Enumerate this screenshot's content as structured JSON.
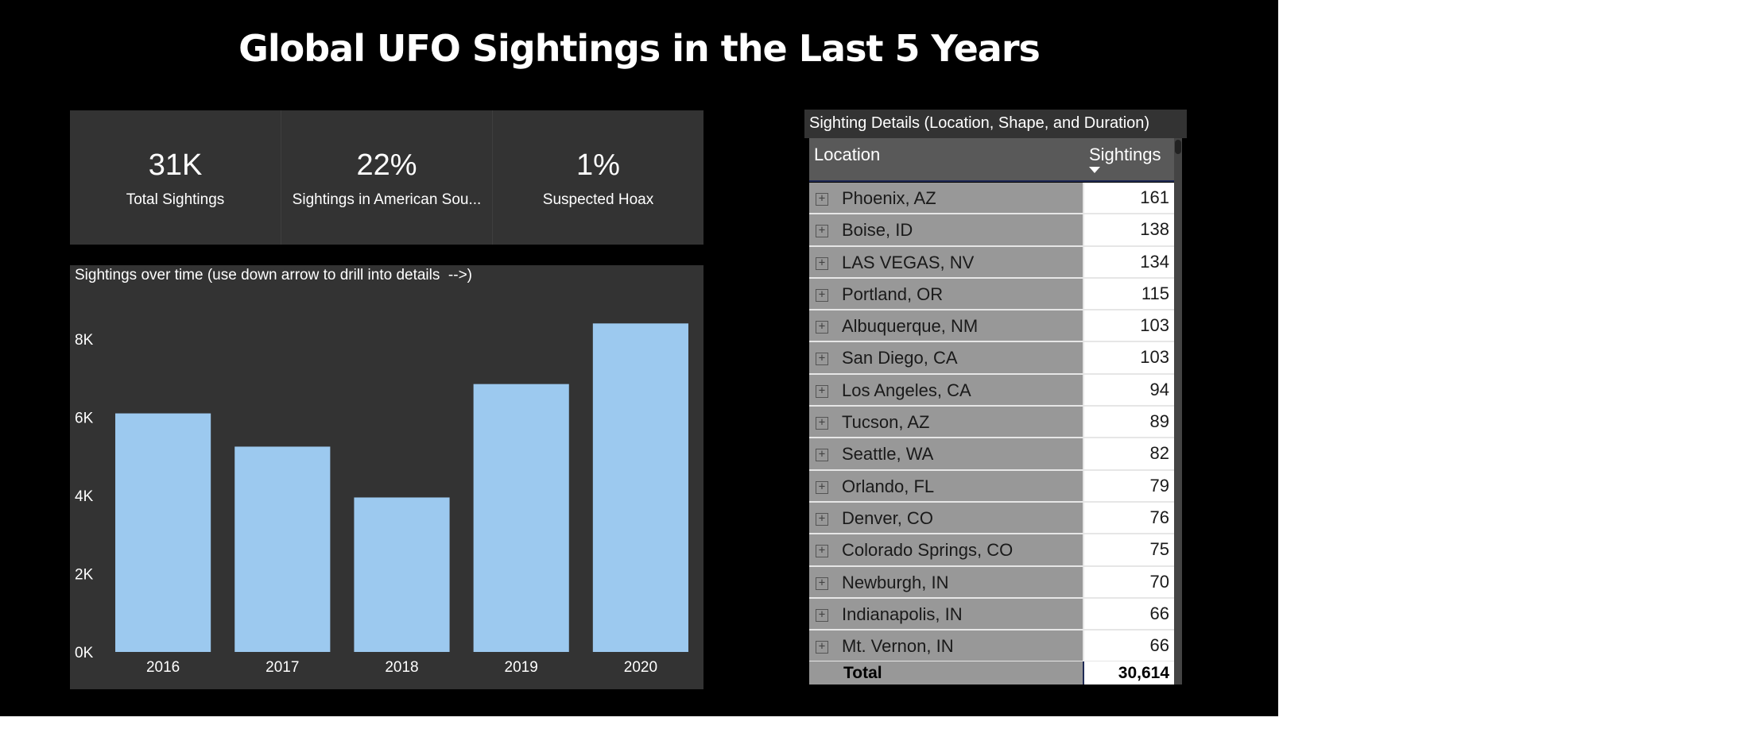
{
  "report": {
    "title": "Global UFO Sightings in the Last 5 Years",
    "background_color": "#000000"
  },
  "kpis": [
    {
      "value": "31K",
      "label": "Total Sightings"
    },
    {
      "value": "22%",
      "label": "Sightings in American Sou..."
    },
    {
      "value": "1%",
      "label": "Suspected Hoax"
    }
  ],
  "chart": {
    "caption": "Sightings over time (use down arrow to drill into details  -->)"
  },
  "chart_data": {
    "type": "bar",
    "categories": [
      "2016",
      "2017",
      "2018",
      "2019",
      "2020"
    ],
    "values": [
      6100,
      5250,
      3950,
      6850,
      8400
    ],
    "ylim": [
      0,
      8000
    ],
    "yticks": [
      "0K",
      "2K",
      "4K",
      "6K",
      "8K"
    ],
    "ytick_values": [
      0,
      2000,
      4000,
      6000,
      8000
    ],
    "bar_color": "#9cc9ef",
    "grid": false
  },
  "table": {
    "title": "Sighting Details (Location, Shape, and Duration)",
    "columns": [
      "Location",
      "Sightings"
    ],
    "sort": "Sightings descending",
    "rows": [
      {
        "location": "Phoenix, AZ",
        "sightings": "161"
      },
      {
        "location": "Boise, ID",
        "sightings": "138"
      },
      {
        "location": "LAS VEGAS, NV",
        "sightings": "134"
      },
      {
        "location": "Portland, OR",
        "sightings": "115"
      },
      {
        "location": "Albuquerque, NM",
        "sightings": "103"
      },
      {
        "location": "San Diego, CA",
        "sightings": "103"
      },
      {
        "location": "Los Angeles, CA",
        "sightings": "94"
      },
      {
        "location": "Tucson, AZ",
        "sightings": "89"
      },
      {
        "location": "Seattle, WA",
        "sightings": "82"
      },
      {
        "location": "Orlando, FL",
        "sightings": "79"
      },
      {
        "location": "Denver, CO",
        "sightings": "76"
      },
      {
        "location": "Colorado Springs, CO",
        "sightings": "75"
      },
      {
        "location": "Newburgh, IN",
        "sightings": "70"
      },
      {
        "location": "Indianapolis, IN",
        "sightings": "66"
      },
      {
        "location": "Mt. Vernon, IN",
        "sightings": "66"
      }
    ],
    "expand_icon": "plus-box-icon",
    "total_label": "Total",
    "total_value": "30,614"
  }
}
